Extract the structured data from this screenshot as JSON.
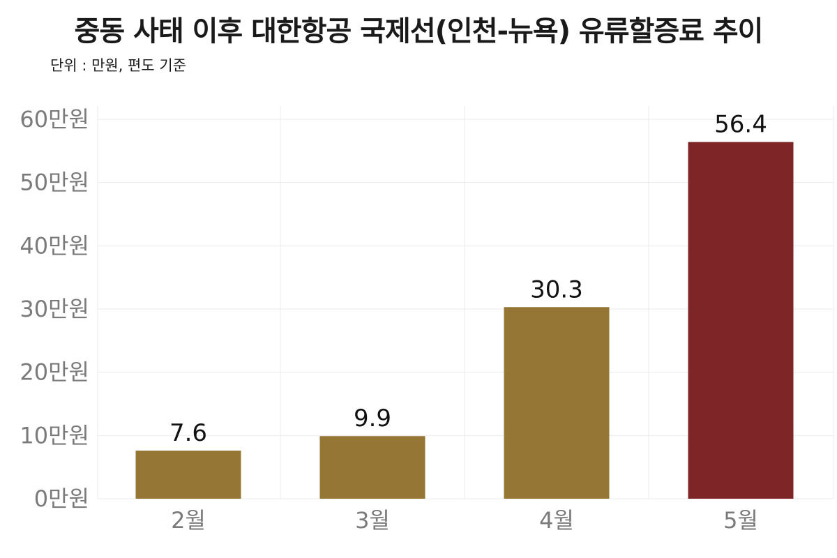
{
  "chart_data": {
    "type": "bar",
    "title": "중동 사태 이후 대한항공 국제선(인천-뉴욕) 유류할증료 추이",
    "subtitle": "단위 : 만원, 편도 기준",
    "categories": [
      "2월",
      "3월",
      "4월",
      "5월"
    ],
    "values": [
      7.6,
      9.9,
      30.3,
      56.4
    ],
    "value_labels": [
      "7.6",
      "9.9",
      "30.3",
      "56.4"
    ],
    "ylim": [
      0,
      60
    ],
    "yticks": [
      0,
      10,
      20,
      30,
      40,
      50,
      60
    ],
    "ytick_labels": [
      "0만원",
      "10만원",
      "20만원",
      "30만원",
      "40만원",
      "50만원",
      "60만원"
    ],
    "bar_colors": [
      "#967634",
      "#967634",
      "#967634",
      "#7e2527"
    ],
    "grid": true,
    "legend": "none"
  }
}
